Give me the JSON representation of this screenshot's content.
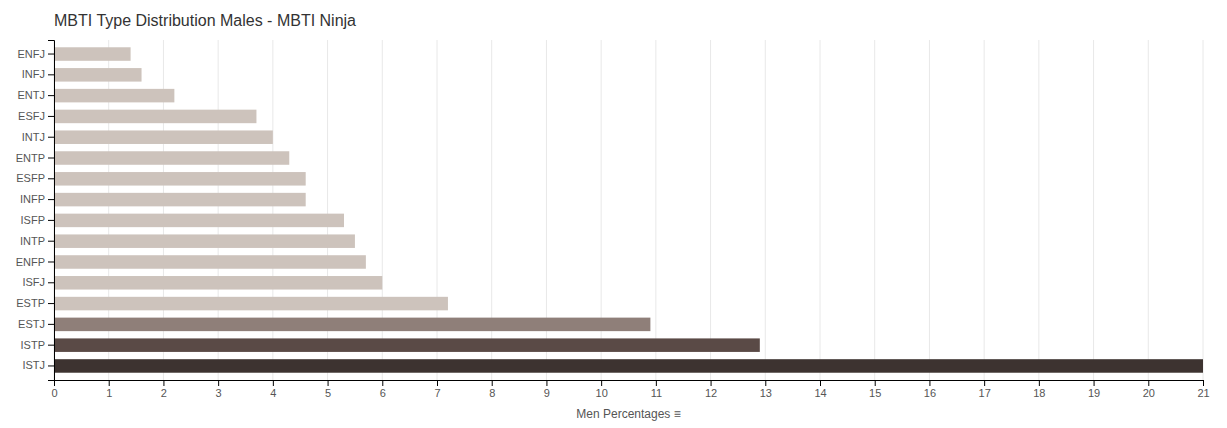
{
  "chart_data": {
    "type": "bar",
    "orientation": "horizontal",
    "title": "MBTI Type Distribution Males - MBTI Ninja",
    "xlabel": "Men Percentages ≡",
    "categories": [
      "ENFJ",
      "INFJ",
      "ENTJ",
      "ESFJ",
      "INTJ",
      "ENTP",
      "ESFP",
      "INFP",
      "ISFP",
      "INTP",
      "ENFP",
      "ISFJ",
      "ESTP",
      "ESTJ",
      "ISTP",
      "ISTJ"
    ],
    "values": [
      1.4,
      1.6,
      2.2,
      3.7,
      4.0,
      4.3,
      4.6,
      4.6,
      5.3,
      5.5,
      5.7,
      6.0,
      7.2,
      10.9,
      12.9,
      21.0
    ],
    "colors": [
      "#cdc3bc",
      "#cdc3bc",
      "#cdc3bc",
      "#cdc3bc",
      "#cdc3bc",
      "#cdc3bc",
      "#cdc3bc",
      "#cdc3bc",
      "#cdc3bc",
      "#cdc3bc",
      "#cdc3bc",
      "#cdc3bc",
      "#cdc3bc",
      "#8f7f79",
      "#5a4a46",
      "#3d3330"
    ],
    "xlim": [
      0,
      21
    ],
    "xticks": [
      0,
      1,
      2,
      3,
      4,
      5,
      6,
      7,
      8,
      9,
      10,
      11,
      12,
      13,
      14,
      15,
      16,
      17,
      18,
      19,
      20,
      21
    ],
    "grid": true
  }
}
